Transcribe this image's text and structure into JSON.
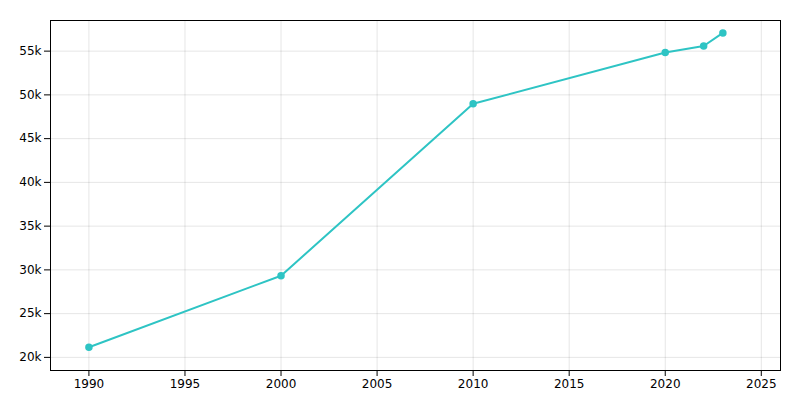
{
  "chart_data": {
    "type": "line",
    "x": [
      1990,
      2000,
      2010,
      2020,
      2022,
      2023
    ],
    "values": [
      21161,
      29329,
      48982,
      54844,
      55581,
      57084
    ],
    "color": "#2EC4C4",
    "marker": "circle",
    "xlim": [
      1988,
      2026
    ],
    "ylim": [
      18500,
      58500
    ],
    "xticks": [
      1990,
      1995,
      2000,
      2005,
      2010,
      2015,
      2020,
      2025
    ],
    "yticks": [
      {
        "value": 20000,
        "label": "20k"
      },
      {
        "value": 25000,
        "label": "25k"
      },
      {
        "value": 30000,
        "label": "30k"
      },
      {
        "value": 35000,
        "label": "35k"
      },
      {
        "value": 40000,
        "label": "40k"
      },
      {
        "value": 45000,
        "label": "45k"
      },
      {
        "value": 50000,
        "label": "50k"
      },
      {
        "value": 55000,
        "label": "55k"
      }
    ],
    "grid": true
  }
}
